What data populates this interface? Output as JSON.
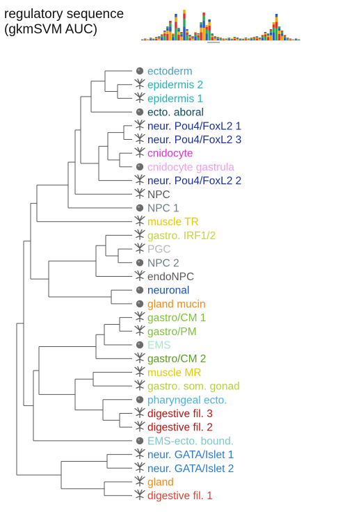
{
  "title": {
    "line1": "regulatory sequence",
    "line2": "(gkmSVM AUC)"
  },
  "leaves": [
    {
      "label": "ectoderm",
      "color": "#4a9fc8",
      "icon": "circle-stage-icon"
    },
    {
      "label": "epidermis 2",
      "color": "#1fb6b6",
      "icon": "polyp-icon"
    },
    {
      "label": "epidermis 1",
      "color": "#1fb6b6",
      "icon": "polyp-icon"
    },
    {
      "label": "ecto. aboral",
      "color": "#0e4a5e",
      "icon": "circle-stage-icon"
    },
    {
      "label": "neur. Pou4/FoxL2 1",
      "color": "#1a2f9e",
      "icon": "polyp-icon"
    },
    {
      "label": "neur. Pou4/FoxL2 3",
      "color": "#1a2f9e",
      "icon": "polyp-icon"
    },
    {
      "label": "cnidocyte",
      "color": "#e02fd8",
      "icon": "polyp-icon"
    },
    {
      "label": "cnidocyte gastrula",
      "color": "#f0a0e8",
      "icon": "circle-stage-icon"
    },
    {
      "label": "neur. Pou4/FoxL2 2",
      "color": "#1a2f9e",
      "icon": "polyp-icon"
    },
    {
      "label": "NPC",
      "color": "#5a5a5a",
      "icon": "polyp-icon"
    },
    {
      "label": "NPC 1",
      "color": "#6a7f88",
      "icon": "circle-stage-icon"
    },
    {
      "label": "muscle TR",
      "color": "#e8c800",
      "icon": "polyp-icon"
    },
    {
      "label": "gastro. IRF1/2",
      "color": "#c8d23c",
      "icon": "polyp-icon"
    },
    {
      "label": "PGC",
      "color": "#b8b8b8",
      "icon": "polyp-icon"
    },
    {
      "label": "NPC 2",
      "color": "#6a7f88",
      "icon": "circle-stage-icon"
    },
    {
      "label": "endoNPC",
      "color": "#5a5a5a",
      "icon": "polyp-icon"
    },
    {
      "label": "neuronal",
      "color": "#1a4fb8",
      "icon": "circle-stage-icon"
    },
    {
      "label": "gland mucin",
      "color": "#f08a1a",
      "icon": "circle-stage-icon"
    },
    {
      "label": "gastro/CM 1",
      "color": "#7cc23a",
      "icon": "polyp-icon"
    },
    {
      "label": "gastro/PM",
      "color": "#7cc23a",
      "icon": "polyp-icon"
    },
    {
      "label": "EMS",
      "color": "#a8e8c8",
      "icon": "circle-stage-icon"
    },
    {
      "label": "gastro/CM 2",
      "color": "#5a9e1e",
      "icon": "polyp-icon"
    },
    {
      "label": "muscle MR",
      "color": "#e8c800",
      "icon": "polyp-icon"
    },
    {
      "label": "gastro. som. gonad",
      "color": "#b4d23a",
      "icon": "polyp-icon"
    },
    {
      "label": "pharyngeal ecto.",
      "color": "#4ab4dc",
      "icon": "circle-stage-icon"
    },
    {
      "label": "digestive fil. 3",
      "color": "#c01010",
      "icon": "polyp-icon"
    },
    {
      "label": "digestive fil. 2",
      "color": "#c01010",
      "icon": "polyp-icon"
    },
    {
      "label": "EMS-ecto. bound.",
      "color": "#7cc8c8",
      "icon": "circle-stage-icon"
    },
    {
      "label": "neur. GATA/Islet 1",
      "color": "#2a7ad8",
      "icon": "polyp-icon"
    },
    {
      "label": "neur. GATA/Islet 2",
      "color": "#2a7ad8",
      "icon": "polyp-icon"
    },
    {
      "label": "gland",
      "color": "#f08a1a",
      "icon": "polyp-icon"
    },
    {
      "label": "digestive fil. 1",
      "color": "#e04030",
      "icon": "polyp-icon"
    }
  ],
  "colors": {
    "branch": "#555555",
    "circle_icon": "#6b6b6b",
    "polyp_icon": "#5a5a5a"
  },
  "logo_icon": "sequence-logo-icon"
}
